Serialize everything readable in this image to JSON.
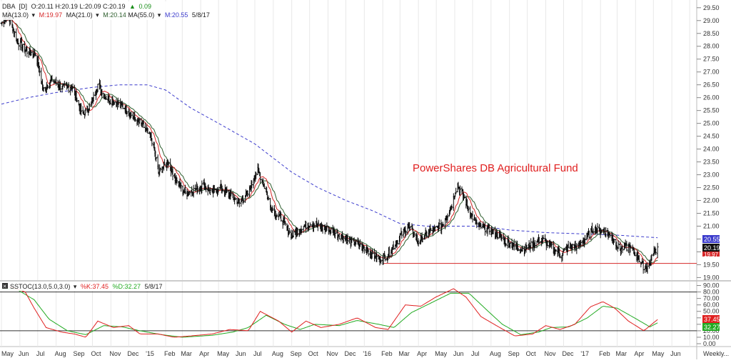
{
  "header": {
    "symbol": "DBA",
    "interval": "[D]",
    "ohlc": "O:20.11 H:20.19 L:20.09 C:20.19",
    "change_arrow": "▲",
    "change": "0.09"
  },
  "ma_legend": {
    "label": "MA(13.0)",
    "menu_arrow1": "▾",
    "m13": "M:19.97",
    "label21": "MA(21.0)",
    "menu_arrow2": "▾",
    "m21": "M:20.14",
    "label55": "MA(55.0)",
    "menu_arrow3": "▾",
    "m55": "M:20.55",
    "date": "5/8/17"
  },
  "stoch_legend": {
    "close_icon": "×",
    "label": "SSTOC(13.0,5.0,3.0)",
    "menu_arrow": "▾",
    "k": "%K:37.45",
    "d": "%D:32.27",
    "date": "5/8/17"
  },
  "annotation": "PowerShares DB Agricultural Fund",
  "x_axis_labels": [
    "May",
    "Jun",
    "Jul",
    "Aug",
    "Sep",
    "Oct",
    "Nov",
    "Dec",
    "'15",
    "Feb",
    "Mar",
    "Apr",
    "May",
    "Jun",
    "Jul",
    "Aug",
    "Sep",
    "Oct",
    "Nov",
    "Dec",
    "'16",
    "Feb",
    "Mar",
    "Apr",
    "May",
    "Jun",
    "Jul",
    "Aug",
    "Sep",
    "Oct",
    "Nov",
    "Dec",
    "'17",
    "Feb",
    "Mar",
    "Apr",
    "May",
    "Jun",
    "Weekly..."
  ],
  "price_badges": {
    "ma55": "20.55",
    "close": "20.19",
    "ma13": "19.97"
  },
  "stoch_badges": {
    "k": "37.45",
    "d": "32.27"
  },
  "colors": {
    "bars": "#111111",
    "ma13": "#d62728",
    "ma21": "#2e5e2e",
    "ma55": "#3b3bcc",
    "stoch_k": "#e02020",
    "stoch_d": "#22aa22",
    "support": "#d62728",
    "up": "#1a8f1a",
    "annotation": "#e02020"
  },
  "chart_data": [
    {
      "type": "ohlc",
      "title": "DBA",
      "y_ticks": [
        19.0,
        19.5,
        20.0,
        20.5,
        21.0,
        21.5,
        22.0,
        22.5,
        23.0,
        23.5,
        24.0,
        24.5,
        25.0,
        25.5,
        26.0,
        26.5,
        27.0,
        27.5,
        28.0,
        28.5,
        29.0,
        29.5
      ],
      "ylim": [
        18.9,
        29.8
      ],
      "support_level": 19.55,
      "x_start": "2014-05-01",
      "x_end": "2017-06-26",
      "close_anchors": [
        [
          "2014-05-01",
          28.9
        ],
        [
          "2014-05-12",
          29.2
        ],
        [
          "2014-05-28",
          28.2
        ],
        [
          "2014-06-12",
          27.8
        ],
        [
          "2014-06-28",
          27.7
        ],
        [
          "2014-07-10",
          26.3
        ],
        [
          "2014-07-25",
          26.7
        ],
        [
          "2014-08-10",
          26.4
        ],
        [
          "2014-08-28",
          26.4
        ],
        [
          "2014-09-15",
          25.3
        ],
        [
          "2014-09-30",
          25.8
        ],
        [
          "2014-10-10",
          26.5
        ],
        [
          "2014-10-25",
          26.0
        ],
        [
          "2014-11-10",
          25.8
        ],
        [
          "2014-11-25",
          25.6
        ],
        [
          "2014-12-10",
          25.2
        ],
        [
          "2014-12-25",
          24.9
        ],
        [
          "2015-01-10",
          24.3
        ],
        [
          "2015-01-20",
          23.1
        ],
        [
          "2015-02-05",
          23.5
        ],
        [
          "2015-02-20",
          22.7
        ],
        [
          "2015-03-05",
          22.3
        ],
        [
          "2015-03-20",
          22.4
        ],
        [
          "2015-04-05",
          22.6
        ],
        [
          "2015-04-20",
          22.3
        ],
        [
          "2015-05-05",
          22.5
        ],
        [
          "2015-05-20",
          22.2
        ],
        [
          "2015-06-05",
          21.9
        ],
        [
          "2015-06-20",
          22.3
        ],
        [
          "2015-07-05",
          23.2
        ],
        [
          "2015-07-15",
          22.7
        ],
        [
          "2015-07-28",
          21.7
        ],
        [
          "2015-08-15",
          21.3
        ],
        [
          "2015-09-01",
          20.6
        ],
        [
          "2015-09-15",
          20.9
        ],
        [
          "2015-10-01",
          21.1
        ],
        [
          "2015-10-15",
          21.0
        ],
        [
          "2015-11-01",
          20.9
        ],
        [
          "2015-11-15",
          20.7
        ],
        [
          "2015-12-01",
          20.5
        ],
        [
          "2015-12-20",
          20.3
        ],
        [
          "2016-01-10",
          20.0
        ],
        [
          "2016-01-25",
          19.7
        ],
        [
          "2016-02-10",
          19.9
        ],
        [
          "2016-03-01",
          20.6
        ],
        [
          "2016-03-15",
          21.0
        ],
        [
          "2016-04-01",
          20.4
        ],
        [
          "2016-04-20",
          20.8
        ],
        [
          "2016-05-10",
          21.0
        ],
        [
          "2016-05-25",
          21.7
        ],
        [
          "2016-06-05",
          22.6
        ],
        [
          "2016-06-15",
          22.2
        ],
        [
          "2016-06-25",
          21.6
        ],
        [
          "2016-07-10",
          21.0
        ],
        [
          "2016-07-25",
          20.9
        ],
        [
          "2016-08-10",
          20.7
        ],
        [
          "2016-08-25",
          20.4
        ],
        [
          "2016-09-10",
          20.2
        ],
        [
          "2016-09-25",
          20.1
        ],
        [
          "2016-10-10",
          20.3
        ],
        [
          "2016-10-25",
          20.5
        ],
        [
          "2016-11-10",
          20.2
        ],
        [
          "2016-11-25",
          19.9
        ],
        [
          "2016-12-10",
          20.2
        ],
        [
          "2016-12-25",
          20.2
        ],
        [
          "2017-01-10",
          20.6
        ],
        [
          "2017-01-20",
          20.9
        ],
        [
          "2017-02-05",
          20.8
        ],
        [
          "2017-02-20",
          20.6
        ],
        [
          "2017-03-05",
          20.1
        ],
        [
          "2017-03-20",
          20.2
        ],
        [
          "2017-04-05",
          19.8
        ],
        [
          "2017-04-15",
          19.4
        ],
        [
          "2017-04-25",
          19.5
        ],
        [
          "2017-05-01",
          20.0
        ],
        [
          "2017-05-08",
          20.19
        ]
      ],
      "ma55_anchors": [
        [
          "2014-05-01",
          25.75
        ],
        [
          "2014-06-15",
          26.0
        ],
        [
          "2014-08-01",
          26.2
        ],
        [
          "2014-10-01",
          26.4
        ],
        [
          "2014-11-15",
          26.5
        ],
        [
          "2015-01-01",
          26.5
        ],
        [
          "2015-02-01",
          26.3
        ],
        [
          "2015-03-15",
          25.6
        ],
        [
          "2015-05-01",
          25.0
        ],
        [
          "2015-07-01",
          24.2
        ],
        [
          "2015-09-01",
          23.1
        ],
        [
          "2015-10-15",
          22.5
        ],
        [
          "2015-12-01",
          22.0
        ],
        [
          "2016-01-15",
          21.6
        ],
        [
          "2016-03-01",
          21.1
        ],
        [
          "2016-04-15",
          21.0
        ],
        [
          "2016-06-01",
          21.0
        ],
        [
          "2016-07-15",
          21.0
        ],
        [
          "2016-09-01",
          20.85
        ],
        [
          "2016-11-01",
          20.75
        ],
        [
          "2017-01-01",
          20.7
        ],
        [
          "2017-03-01",
          20.65
        ],
        [
          "2017-05-08",
          20.55
        ]
      ]
    },
    {
      "type": "line",
      "title": "SSTOC(13.0,5.0,3.0)",
      "y_ticks": [
        0,
        10,
        20,
        30,
        40,
        50,
        60,
        70,
        80,
        90
      ],
      "ylim": [
        0,
        95
      ],
      "overbought": 80,
      "oversold": 20,
      "k_anchors": [
        [
          "2014-05-01",
          86
        ],
        [
          "2014-05-15",
          88
        ],
        [
          "2014-06-10",
          80
        ],
        [
          "2014-06-25",
          55
        ],
        [
          "2014-07-15",
          25
        ],
        [
          "2014-08-10",
          18
        ],
        [
          "2014-09-01",
          15
        ],
        [
          "2014-09-20",
          10
        ],
        [
          "2014-10-10",
          35
        ],
        [
          "2014-11-05",
          25
        ],
        [
          "2014-12-01",
          28
        ],
        [
          "2014-12-20",
          15
        ],
        [
          "2015-01-20",
          15
        ],
        [
          "2015-02-15",
          10
        ],
        [
          "2015-03-15",
          12
        ],
        [
          "2015-04-20",
          15
        ],
        [
          "2015-05-20",
          22
        ],
        [
          "2015-06-20",
          20
        ],
        [
          "2015-07-10",
          50
        ],
        [
          "2015-08-10",
          35
        ],
        [
          "2015-09-01",
          18
        ],
        [
          "2015-09-25",
          35
        ],
        [
          "2015-10-20",
          25
        ],
        [
          "2015-11-20",
          30
        ],
        [
          "2015-12-20",
          40
        ],
        [
          "2016-01-20",
          25
        ],
        [
          "2016-02-10",
          22
        ],
        [
          "2016-03-10",
          60
        ],
        [
          "2016-04-05",
          58
        ],
        [
          "2016-04-30",
          72
        ],
        [
          "2016-05-30",
          85
        ],
        [
          "2016-06-20",
          72
        ],
        [
          "2016-07-15",
          42
        ],
        [
          "2016-08-10",
          28
        ],
        [
          "2016-09-10",
          12
        ],
        [
          "2016-10-10",
          15
        ],
        [
          "2016-11-01",
          28
        ],
        [
          "2016-11-25",
          22
        ],
        [
          "2016-12-20",
          30
        ],
        [
          "2017-01-15",
          57
        ],
        [
          "2017-02-05",
          65
        ],
        [
          "2017-02-25",
          55
        ],
        [
          "2017-03-20",
          35
        ],
        [
          "2017-04-15",
          20
        ],
        [
          "2017-05-08",
          37.45
        ]
      ],
      "d_anchors": [
        [
          "2014-05-01",
          84
        ],
        [
          "2014-05-25",
          85
        ],
        [
          "2014-06-25",
          68
        ],
        [
          "2014-07-20",
          38
        ],
        [
          "2014-08-20",
          20
        ],
        [
          "2014-09-20",
          14
        ],
        [
          "2014-10-20",
          28
        ],
        [
          "2014-11-20",
          26
        ],
        [
          "2014-12-20",
          20
        ],
        [
          "2015-01-25",
          14
        ],
        [
          "2015-03-01",
          10
        ],
        [
          "2015-04-20",
          13
        ],
        [
          "2015-05-25",
          18
        ],
        [
          "2015-06-20",
          25
        ],
        [
          "2015-07-20",
          44
        ],
        [
          "2015-08-20",
          30
        ],
        [
          "2015-09-15",
          22
        ],
        [
          "2015-10-10",
          30
        ],
        [
          "2015-11-20",
          28
        ],
        [
          "2015-12-20",
          36
        ],
        [
          "2016-01-25",
          30
        ],
        [
          "2016-02-20",
          25
        ],
        [
          "2016-03-20",
          48
        ],
        [
          "2016-04-20",
          62
        ],
        [
          "2016-05-25",
          78
        ],
        [
          "2016-06-25",
          78
        ],
        [
          "2016-07-25",
          52
        ],
        [
          "2016-08-20",
          30
        ],
        [
          "2016-09-20",
          14
        ],
        [
          "2016-10-20",
          18
        ],
        [
          "2016-11-10",
          25
        ],
        [
          "2016-12-10",
          26
        ],
        [
          "2017-01-10",
          40
        ],
        [
          "2017-02-05",
          58
        ],
        [
          "2017-03-01",
          55
        ],
        [
          "2017-03-30",
          40
        ],
        [
          "2017-04-25",
          26
        ],
        [
          "2017-05-08",
          32.27
        ]
      ]
    }
  ]
}
